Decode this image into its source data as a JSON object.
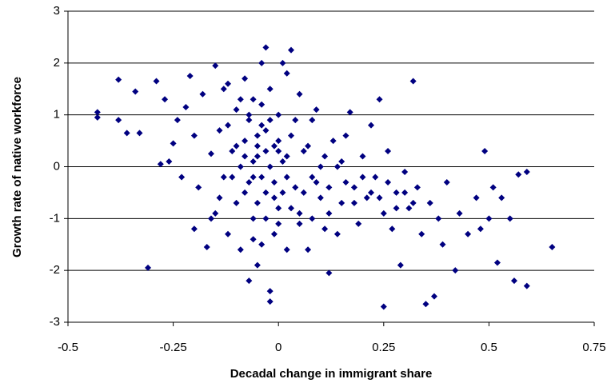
{
  "chart_data": {
    "type": "scatter",
    "x_label": "Decadal change in immigrant share",
    "y_label": "Growth rate of native workforce",
    "xlim": [
      -0.5,
      0.75
    ],
    "xticks": [
      -0.5,
      -0.25,
      0,
      0.25,
      0.5,
      0.75
    ],
    "ylim": [
      -3,
      3
    ],
    "yticks": [
      -3,
      -2,
      -1,
      0,
      1,
      2,
      3
    ],
    "grid": true,
    "color": "#000080",
    "x": [
      -0.43,
      -0.43,
      -0.38,
      -0.38,
      -0.36,
      -0.34,
      -0.33,
      -0.31,
      -0.29,
      -0.28,
      -0.27,
      -0.26,
      -0.25,
      -0.24,
      -0.23,
      -0.22,
      -0.21,
      -0.2,
      -0.2,
      -0.19,
      -0.18,
      -0.17,
      -0.16,
      -0.15,
      -0.15,
      -0.14,
      -0.13,
      -0.13,
      -0.12,
      -0.12,
      -0.11,
      -0.1,
      -0.1,
      -0.09,
      -0.09,
      -0.08,
      -0.08,
      -0.07,
      -0.07,
      -0.06,
      -0.06,
      -0.05,
      -0.05,
      -0.04,
      -0.04,
      -0.03,
      -0.03,
      -0.02,
      -0.02,
      -0.02,
      -0.01,
      -0.01,
      0,
      0,
      0.01,
      0.01,
      0.02,
      0.02,
      0.03,
      0.03,
      0.04,
      0.05,
      0.05,
      0.06,
      0.07,
      0.08,
      0.08,
      0.09,
      0.1,
      0.11,
      0.12,
      0.12,
      0.13,
      0.14,
      0.15,
      0.15,
      0.16,
      0.17,
      0.18,
      0.19,
      0.2,
      0.21,
      0.22,
      0.23,
      0.24,
      0.25,
      0.25,
      0.26,
      0.27,
      0.28,
      0.29,
      0.3,
      0.31,
      0.32,
      0.33,
      0.34,
      0.35,
      0.36,
      0.37,
      0.38,
      0.39,
      0.4,
      0.42,
      0.43,
      0.45,
      0.47,
      0.48,
      0.49,
      0.5,
      0.51,
      0.52,
      0.53,
      0.55,
      0.56,
      0.57,
      0.59,
      0.59,
      0.65,
      -0.06,
      -0.05,
      -0.04,
      -0.03,
      -0.02,
      -0.01,
      0,
      -0.07,
      -0.08,
      -0.1,
      -0.11,
      -0.12,
      -0.04,
      -0.03,
      -0.05,
      0.01,
      0.02,
      0.03,
      0.04,
      0.06,
      0.07,
      0.09,
      0.1,
      0.12,
      0.14,
      0.16,
      0.18,
      0.2,
      0.22,
      0.24,
      0.26,
      0.28,
      0.3,
      0.32,
      -0.09,
      -0.06,
      -0.02,
      0,
      -0.14,
      -0.16,
      0.05,
      0.08,
      0.11,
      -0.05,
      -0.03,
      -0.01,
      -0.06,
      -0.08,
      0,
      0.02,
      -0.04,
      -0.07
    ],
    "values": [
      1.05,
      0.95,
      1.68,
      0.9,
      0.65,
      1.45,
      0.65,
      -1.95,
      1.65,
      0.05,
      1.3,
      0.1,
      0.45,
      0.9,
      -0.2,
      1.15,
      1.75,
      -1.2,
      0.6,
      -0.4,
      1.4,
      -1.55,
      0.25,
      1.95,
      -0.9,
      0.7,
      1.5,
      -0.2,
      1.6,
      -1.3,
      0.3,
      -0.7,
      1.1,
      0,
      -1.6,
      1.7,
      0.5,
      -0.3,
      -2.2,
      1.3,
      -1.0,
      0.2,
      -1.9,
      2.0,
      0.8,
      2.3,
      -0.5,
      1.5,
      -2.6,
      -2.4,
      0.4,
      -1.3,
      1.0,
      -0.8,
      2.0,
      0.1,
      1.8,
      -1.6,
      2.25,
      0.6,
      -0.4,
      1.4,
      -1.1,
      0.3,
      -1.6,
      0.9,
      -0.2,
      1.1,
      -0.6,
      0.2,
      -2.05,
      -0.9,
      0.5,
      -1.3,
      0.1,
      -0.7,
      0.6,
      1.05,
      -0.4,
      -1.1,
      0.2,
      -0.6,
      0.8,
      -0.2,
      1.3,
      -0.9,
      -2.7,
      0.3,
      -1.2,
      -0.5,
      -1.9,
      -0.1,
      -0.8,
      1.65,
      -0.4,
      -1.3,
      -2.65,
      -0.7,
      -2.5,
      -1.0,
      -1.5,
      -0.3,
      -2.0,
      -0.9,
      -1.3,
      -0.6,
      -1.2,
      0.3,
      -1.0,
      -0.4,
      -1.85,
      -0.6,
      -1.0,
      -2.2,
      -0.15,
      -0.1,
      -2.3,
      -1.55,
      0.1,
      0.6,
      -0.2,
      0.3,
      0,
      -0.3,
      0.5,
      0.9,
      -0.5,
      0.4,
      -0.2,
      0.8,
      1.2,
      -1.0,
      -0.7,
      -0.5,
      0.2,
      -0.8,
      0.9,
      -0.5,
      0.4,
      -0.3,
      0,
      -0.4,
      0,
      -0.3,
      -0.7,
      -0.2,
      -0.5,
      -0.6,
      -0.3,
      -0.8,
      -0.5,
      -0.7,
      1.3,
      -1.4,
      0.9,
      -1.1,
      -0.6,
      -1.0,
      -0.9,
      -1.0,
      -1.2,
      0.4,
      0.7,
      -0.6,
      -0.2,
      0.2,
      0.3,
      -0.2,
      -1.5,
      1.0
    ]
  }
}
